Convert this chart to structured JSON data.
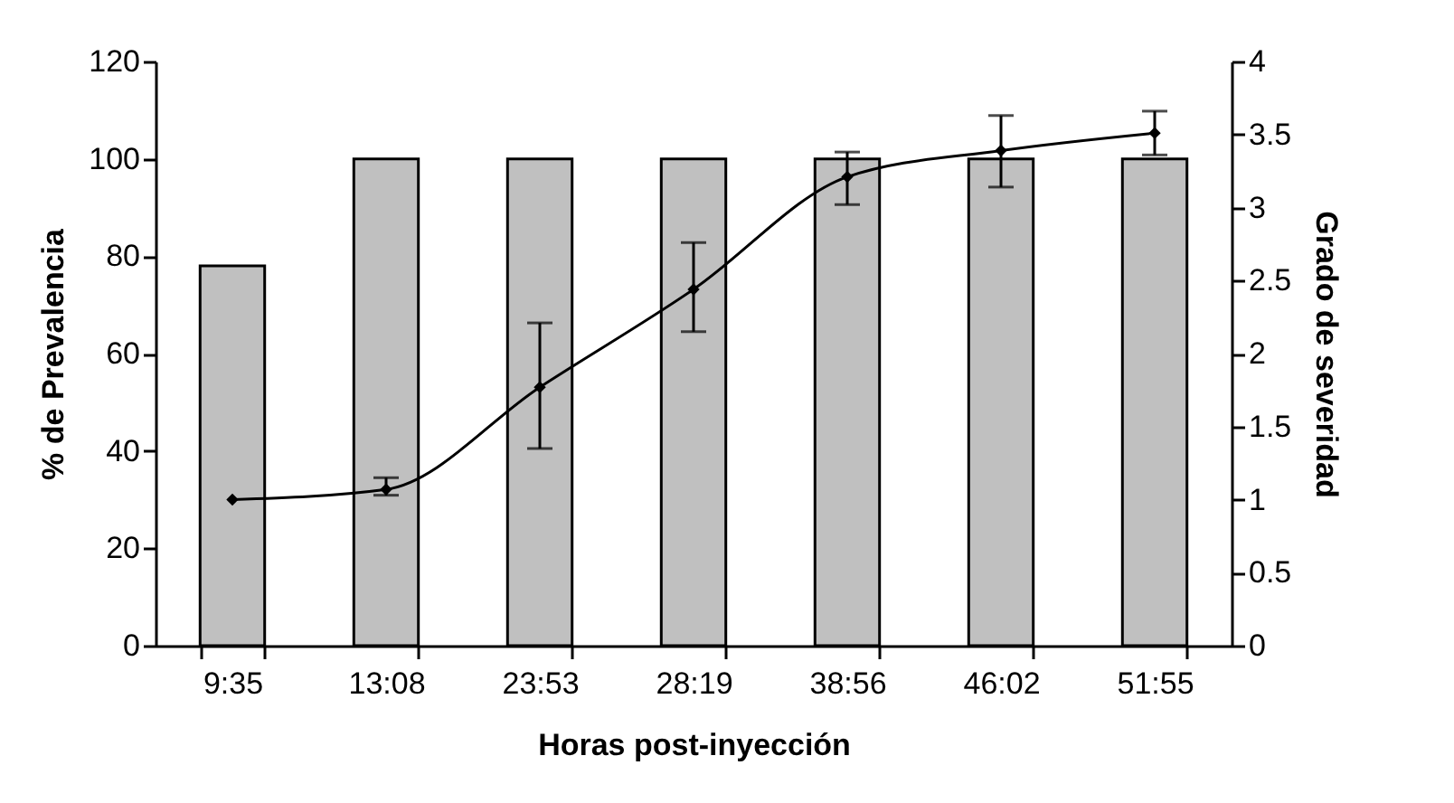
{
  "chart_data": {
    "type": "bar",
    "xlabel": "Horas post-inyección",
    "ylabel": "% de Prevalencia",
    "y2label": "Grado de severidad",
    "categories": [
      "9:35",
      "13:08",
      "23:53",
      "28:19",
      "38:56",
      "46:02",
      "51:55"
    ],
    "series": [
      {
        "color": "#c0c0c0",
        "values": [
          78,
          100,
          100,
          100,
          100,
          100,
          100
        ]
      },
      {
        "type": "line",
        "axis": "y2",
        "color": "#000000",
        "values": [
          1.0,
          1.07,
          1.77,
          2.44,
          3.21,
          3.39,
          3.51
        ],
        "errors": [
          null,
          [
            1.03,
            1.15
          ],
          [
            1.35,
            2.21
          ],
          [
            2.15,
            2.76
          ],
          [
            3.02,
            3.38
          ],
          [
            3.14,
            3.63
          ],
          [
            3.36,
            3.66
          ]
        ]
      }
    ],
    "ylim": [
      0,
      120
    ],
    "yticks": [
      0,
      20,
      40,
      60,
      80,
      100,
      120
    ],
    "y2lim": [
      0,
      4
    ],
    "y2ticks": [
      0,
      0.5,
      1,
      1.5,
      2,
      2.5,
      3,
      3.5,
      4
    ],
    "grid": false,
    "marker": "diamond",
    "line_style": "solid"
  }
}
